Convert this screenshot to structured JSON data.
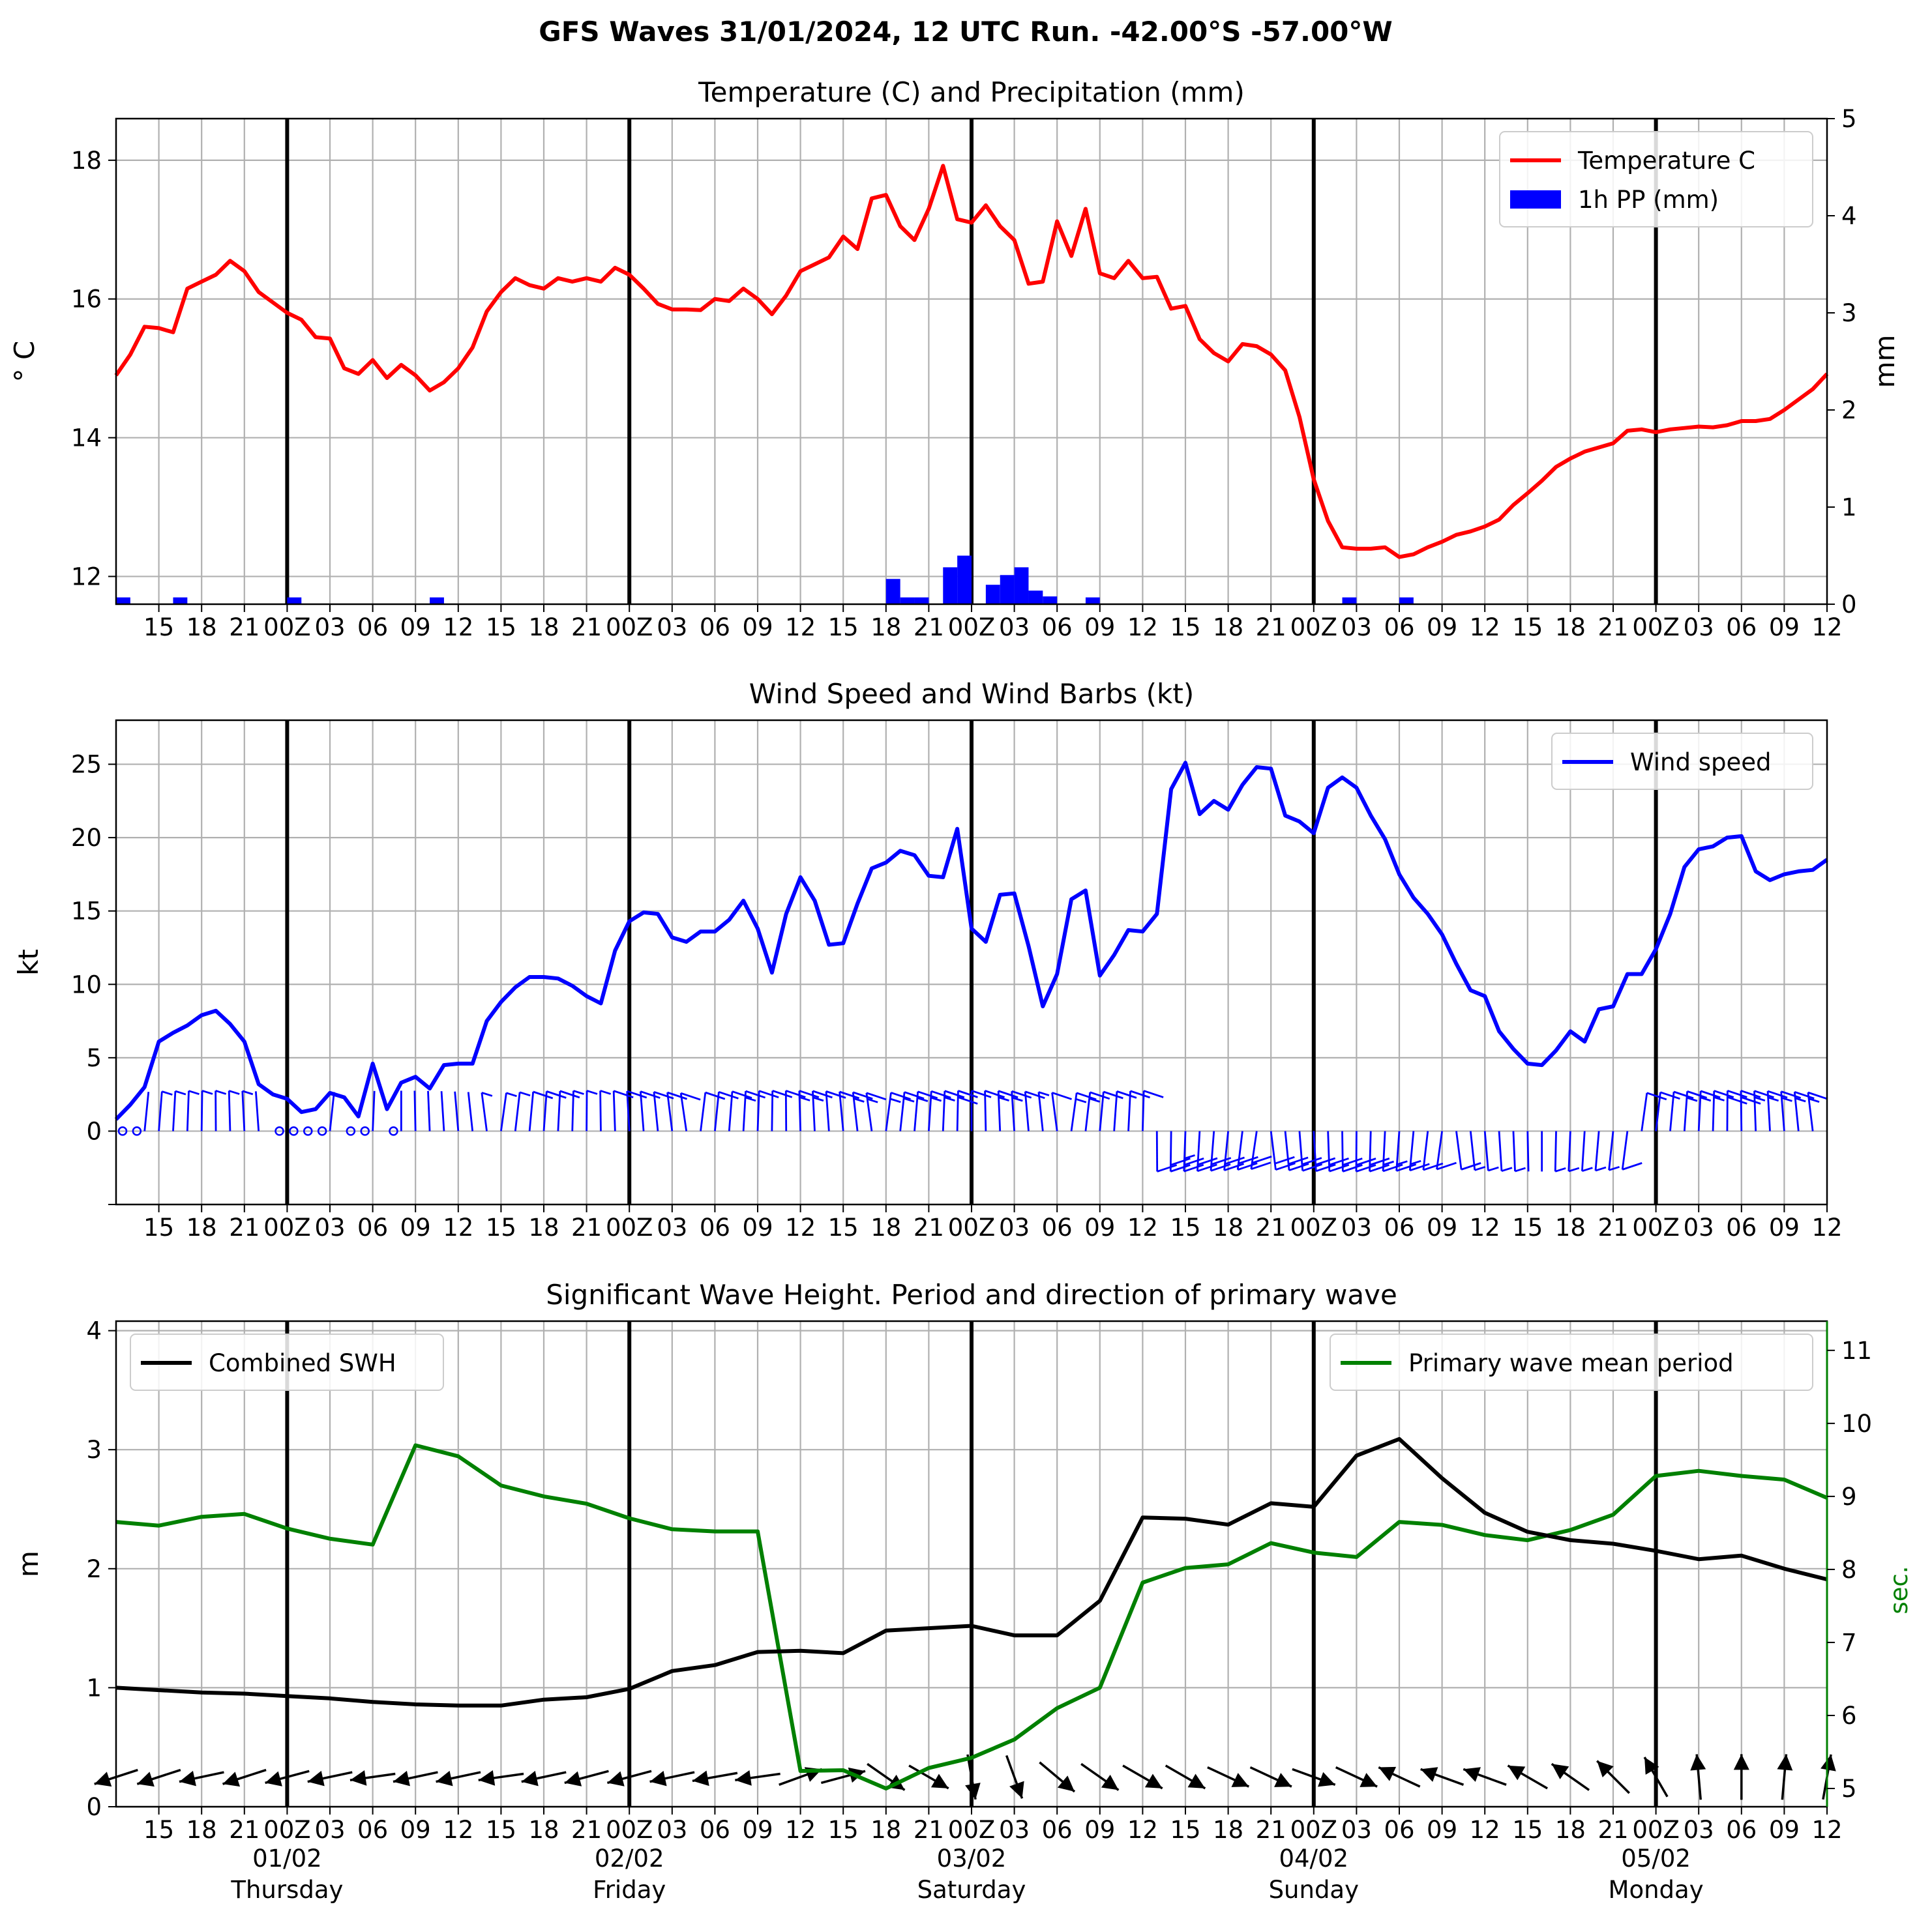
{
  "title": "GFS Waves 31/01/2024, 12 UTC Run. -42.00°S -57.00°W",
  "colors": {
    "temperature": "#ff0000",
    "precip": "#0000ff",
    "wind": "#0000ff",
    "swh": "#000000",
    "period": "#008000",
    "grid": "#b0b0b0"
  },
  "time_axis": {
    "tick_labels": [
      "15",
      "18",
      "21",
      "00Z",
      "03",
      "06",
      "09",
      "12",
      "15",
      "18",
      "21",
      "00Z",
      "03",
      "06",
      "09",
      "12",
      "15",
      "18",
      "21",
      "00Z",
      "03",
      "06",
      "09",
      "12",
      "15",
      "18",
      "21",
      "00Z",
      "03",
      "06",
      "09",
      "12",
      "15",
      "18",
      "21",
      "00Z",
      "03",
      "06",
      "09",
      "12"
    ],
    "day_labels": [
      {
        "date": "01/02",
        "day": "Thursday"
      },
      {
        "date": "02/02",
        "day": "Friday"
      },
      {
        "date": "03/02",
        "day": "Saturday"
      },
      {
        "date": "04/02",
        "day": "Sunday"
      },
      {
        "date": "05/02",
        "day": "Monday"
      }
    ]
  },
  "chart_data": [
    {
      "type": "line",
      "title": "Temperature (C) and Precipitation (mm)",
      "ylabel": "$^\\circ$C",
      "ylabel_display": "° C",
      "y2label": "mm",
      "x_units": "hours from 31/01/2024 12 UTC",
      "ylim": [
        11.6,
        18.6
      ],
      "yticks": [
        "12",
        "14",
        "16",
        "18"
      ],
      "y2lim": [
        0,
        5
      ],
      "y2ticks": [
        "0",
        "1",
        "2",
        "3",
        "4",
        "5"
      ],
      "legend": "top-right",
      "series": [
        {
          "name": "Temperature C",
          "type": "line",
          "x": [
            0,
            1,
            2,
            3,
            4,
            5,
            6,
            7,
            8,
            9,
            10,
            11,
            12,
            13,
            14,
            15,
            16,
            17,
            18,
            19,
            20,
            21,
            22,
            23,
            24,
            25,
            26,
            27,
            28,
            29,
            30,
            31,
            32,
            33,
            34,
            35,
            36,
            37,
            38,
            39,
            40,
            41,
            42,
            43,
            44,
            45,
            46,
            47,
            48,
            49,
            50,
            51,
            52,
            53,
            54,
            55,
            56,
            57,
            58,
            59,
            60,
            61,
            62,
            63,
            64,
            65,
            66,
            67,
            68,
            69,
            70,
            71,
            72,
            73,
            74,
            75,
            76,
            77,
            78,
            79,
            80,
            81,
            82,
            83,
            84,
            85,
            86,
            87,
            88,
            89,
            90,
            91,
            92,
            93,
            94,
            95,
            96,
            97,
            98,
            99,
            100,
            101,
            102,
            103,
            104,
            105,
            106,
            107,
            108,
            109,
            110,
            111,
            112,
            113,
            114,
            115,
            116,
            117,
            118,
            119,
            120
          ],
          "values": [
            14.9,
            15.2,
            15.6,
            15.58,
            15.52,
            16.15,
            16.25,
            16.35,
            16.55,
            16.4,
            16.1,
            15.95,
            15.8,
            15.7,
            15.45,
            15.43,
            15.0,
            14.92,
            15.12,
            14.86,
            15.05,
            14.9,
            14.68,
            14.8,
            15.0,
            15.3,
            15.82,
            16.1,
            16.3,
            16.2,
            16.15,
            16.3,
            16.25,
            16.3,
            16.25,
            16.45,
            16.35,
            16.15,
            15.93,
            15.85,
            15.85,
            15.84,
            16.0,
            15.97,
            16.15,
            16.0,
            15.78,
            16.05,
            16.4,
            16.5,
            16.6,
            16.9,
            16.72,
            17.45,
            17.5,
            17.05,
            16.85,
            17.3,
            17.92,
            17.15,
            17.1,
            17.35,
            17.05,
            16.85,
            16.22,
            16.25,
            17.12,
            16.62,
            17.3,
            16.37,
            16.3,
            16.55,
            16.3,
            16.32,
            15.86,
            15.9,
            15.42,
            15.22,
            15.1,
            15.35,
            15.32,
            15.2,
            14.97,
            14.3,
            13.4,
            12.8,
            12.42,
            12.4,
            12.4,
            12.42,
            12.28,
            12.32,
            12.42,
            12.5,
            12.6,
            12.65,
            12.72,
            12.82,
            13.03,
            13.2,
            13.38,
            13.58,
            13.7,
            13.8,
            13.86,
            13.92,
            14.1,
            14.12,
            14.08,
            14.12,
            14.14,
            14.16,
            14.15,
            14.18,
            14.24,
            14.24,
            14.27,
            14.4,
            14.55,
            14.7,
            14.92
          ]
        },
        {
          "name": "1h PP (mm)",
          "type": "bar",
          "axis": "y2",
          "x": [
            0,
            4,
            12,
            22,
            54,
            55,
            56,
            58,
            59,
            61,
            62,
            63,
            64,
            65,
            68,
            86,
            90
          ],
          "values": [
            0.07,
            0.07,
            0.07,
            0.07,
            0.26,
            0.07,
            0.07,
            0.38,
            0.5,
            0.2,
            0.3,
            0.38,
            0.14,
            0.08,
            0.07,
            0.07,
            0.07
          ]
        }
      ]
    },
    {
      "type": "line",
      "title": "Wind Speed and Wind Barbs (kt)",
      "ylabel": "kt",
      "x_units": "hours from 31/01/2024 12 UTC",
      "ylim": [
        -5,
        28
      ],
      "yticks": [
        "0",
        "5",
        "10",
        "15",
        "20",
        "25"
      ],
      "legend": "top-right",
      "series": [
        {
          "name": "Wind speed",
          "type": "line",
          "x": [
            0,
            1,
            2,
            3,
            4,
            5,
            6,
            7,
            8,
            9,
            10,
            11,
            12,
            13,
            14,
            15,
            16,
            17,
            18,
            19,
            20,
            21,
            22,
            23,
            24,
            25,
            26,
            27,
            28,
            29,
            30,
            31,
            32,
            33,
            34,
            35,
            36,
            37,
            38,
            39,
            40,
            41,
            42,
            43,
            44,
            45,
            46,
            47,
            48,
            49,
            50,
            51,
            52,
            53,
            54,
            55,
            56,
            57,
            58,
            59,
            60,
            61,
            62,
            63,
            64,
            65,
            66,
            67,
            68,
            69,
            70,
            71,
            72,
            73,
            74,
            75,
            76,
            77,
            78,
            79,
            80,
            81,
            82,
            83,
            84,
            85,
            86,
            87,
            88,
            89,
            90,
            91,
            92,
            93,
            94,
            95,
            96,
            97,
            98,
            99,
            100,
            101,
            102,
            103,
            104,
            105,
            106,
            107,
            108,
            109,
            110,
            111,
            112,
            113,
            114,
            115,
            116,
            117,
            118,
            119,
            120
          ],
          "values": [
            0.8,
            1.8,
            3.0,
            6.1,
            6.7,
            7.2,
            7.9,
            8.2,
            7.3,
            6.1,
            3.2,
            2.5,
            2.2,
            1.3,
            1.5,
            2.6,
            2.3,
            1.0,
            4.6,
            1.5,
            3.3,
            3.7,
            2.9,
            4.5,
            4.6,
            4.6,
            7.5,
            8.8,
            9.8,
            10.5,
            10.5,
            10.4,
            9.9,
            9.2,
            8.7,
            12.3,
            14.3,
            14.9,
            14.8,
            13.2,
            12.9,
            13.6,
            13.6,
            14.4,
            15.7,
            13.8,
            10.8,
            14.8,
            17.3,
            15.7,
            12.7,
            12.8,
            15.5,
            17.9,
            18.3,
            19.1,
            18.8,
            17.4,
            17.3,
            20.6,
            13.8,
            12.9,
            16.1,
            16.2,
            12.6,
            8.5,
            10.7,
            15.8,
            16.4,
            10.6,
            12.0,
            13.7,
            13.6,
            14.8,
            23.3,
            25.1,
            21.6,
            22.5,
            21.9,
            23.6,
            24.8,
            24.7,
            21.5,
            21.1,
            20.3,
            23.4,
            24.1,
            23.4,
            21.5,
            19.9,
            17.5,
            15.9,
            14.8,
            13.4,
            11.4,
            9.6,
            9.2,
            6.8,
            5.6,
            4.6,
            4.5,
            5.5,
            6.8,
            6.1,
            8.3,
            8.5,
            10.7,
            10.7,
            12.4,
            14.8,
            18.0,
            19.2,
            19.4,
            20.0,
            20.1,
            17.7,
            17.1,
            17.5,
            17.7,
            17.8,
            18.5
          ]
        },
        {
          "name": "Wind barbs",
          "type": "barb",
          "side_by_x": [
            [
              0,
              30,
              "above"
            ],
            [
              31,
              35,
              "above"
            ],
            [
              36,
              72,
              "above"
            ],
            [
              73,
              106,
              "below"
            ],
            [
              107,
              120,
              "above"
            ]
          ]
        }
      ]
    },
    {
      "type": "line",
      "title": "Significant Wave Height. Period and direction of primary wave",
      "ylabel": "m",
      "y2label": "sec.",
      "x_units": "hours from 31/01/2024 12 UTC",
      "ylim": [
        0,
        4.08
      ],
      "yticks": [
        "0",
        "1",
        "2",
        "3",
        "4"
      ],
      "y2lim": [
        4.75,
        11.4
      ],
      "y2ticks": [
        "5",
        "6",
        "7",
        "8",
        "9",
        "10",
        "11"
      ],
      "series": [
        {
          "name": "Combined SWH",
          "type": "line",
          "legend": "top-left",
          "x": [
            0,
            3,
            6,
            9,
            12,
            15,
            18,
            21,
            24,
            27,
            30,
            33,
            36,
            39,
            42,
            45,
            48,
            51,
            54,
            57,
            60,
            63,
            66,
            69,
            72,
            75,
            78,
            81,
            84,
            87,
            90,
            93,
            96,
            99,
            102,
            105,
            108,
            111,
            114,
            117,
            120
          ],
          "values": [
            1.0,
            0.98,
            0.96,
            0.95,
            0.93,
            0.91,
            0.88,
            0.86,
            0.85,
            0.85,
            0.9,
            0.92,
            0.99,
            1.14,
            1.19,
            1.3,
            1.31,
            1.29,
            1.48,
            1.5,
            1.52,
            1.44,
            1.44,
            1.73,
            2.43,
            2.42,
            2.37,
            2.55,
            2.52,
            2.95,
            3.09,
            2.76,
            2.47,
            2.31,
            2.24,
            2.21,
            2.15,
            2.08,
            2.11,
            2.0,
            1.91
          ]
        },
        {
          "name": "Primary wave mean period",
          "type": "line",
          "axis": "y2",
          "legend": "top-right",
          "x": [
            0,
            3,
            6,
            9,
            12,
            15,
            18,
            21,
            24,
            27,
            30,
            33,
            36,
            39,
            42,
            45,
            48,
            51,
            54,
            57,
            60,
            63,
            66,
            69,
            72,
            75,
            78,
            81,
            84,
            87,
            90,
            93,
            96,
            99,
            102,
            105,
            108,
            111,
            114,
            117,
            120
          ],
          "values": [
            8.65,
            8.6,
            8.72,
            8.76,
            8.56,
            8.42,
            8.34,
            9.7,
            9.55,
            9.15,
            9.0,
            8.9,
            8.7,
            8.55,
            8.52,
            8.52,
            5.24,
            5.25,
            5.0,
            5.28,
            5.42,
            5.67,
            6.1,
            6.38,
            7.82,
            8.02,
            8.07,
            8.36,
            8.23,
            8.17,
            8.65,
            8.61,
            8.47,
            8.4,
            8.54,
            8.75,
            9.28,
            9.35,
            9.28,
            9.23,
            8.98
          ]
        },
        {
          "name": "Primary wave direction",
          "type": "arrows",
          "x": [
            0,
            3,
            6,
            9,
            12,
            15,
            18,
            21,
            24,
            27,
            30,
            33,
            36,
            39,
            42,
            45,
            48,
            51,
            54,
            57,
            60,
            63,
            66,
            69,
            72,
            75,
            78,
            81,
            84,
            87,
            90,
            93,
            96,
            99,
            102,
            105,
            108,
            111,
            114,
            117,
            120
          ],
          "to_direction_deg": [
            252,
            252,
            258,
            252,
            255,
            258,
            262,
            258,
            258,
            262,
            258,
            255,
            255,
            258,
            260,
            262,
            70,
            75,
            125,
            120,
            170,
            160,
            130,
            125,
            120,
            120,
            115,
            115,
            110,
            115,
            295,
            290,
            290,
            300,
            305,
            315,
            330,
            355,
            0,
            5,
            10
          ]
        }
      ]
    }
  ]
}
